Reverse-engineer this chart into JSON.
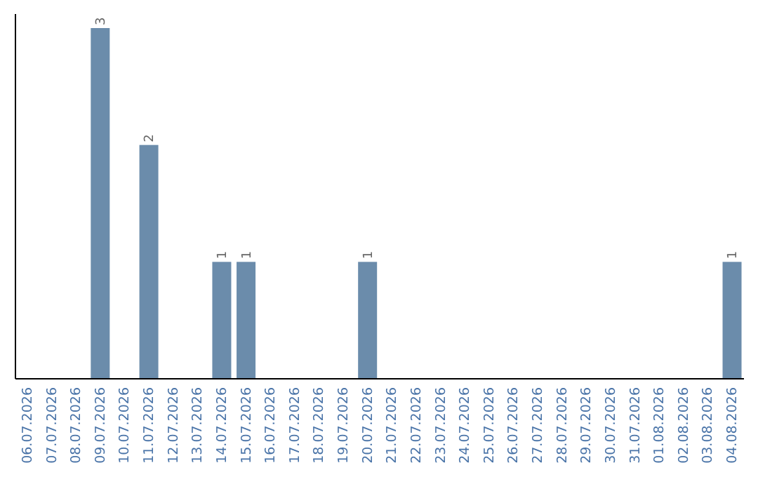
{
  "chart_data": {
    "type": "bar",
    "categories": [
      "06.07.2026",
      "07.07.2026",
      "08.07.2026",
      "09.07.2026",
      "10.07.2026",
      "11.07.2026",
      "12.07.2026",
      "13.07.2026",
      "14.07.2026",
      "15.07.2026",
      "16.07.2026",
      "17.07.2026",
      "18.07.2026",
      "19.07.2026",
      "20.07.2026",
      "21.07.2026",
      "22.07.2026",
      "23.07.2026",
      "24.07.2026",
      "25.07.2026",
      "26.07.2026",
      "27.07.2026",
      "28.07.2026",
      "29.07.2026",
      "30.07.2026",
      "31.07.2026",
      "01.08.2026",
      "02.08.2026",
      "03.08.2026",
      "04.08.2026"
    ],
    "values": [
      0,
      0,
      0,
      3,
      0,
      2,
      0,
      0,
      1,
      1,
      0,
      0,
      0,
      0,
      1,
      0,
      0,
      0,
      0,
      0,
      0,
      0,
      0,
      0,
      0,
      0,
      0,
      0,
      0,
      1
    ],
    "value_labels": [
      null,
      null,
      null,
      "3",
      null,
      "2",
      null,
      null,
      "1",
      "1",
      null,
      null,
      null,
      null,
      "1",
      null,
      null,
      null,
      null,
      null,
      null,
      null,
      null,
      null,
      null,
      null,
      null,
      null,
      null,
      "1"
    ],
    "color": "#6b8cab"
  }
}
